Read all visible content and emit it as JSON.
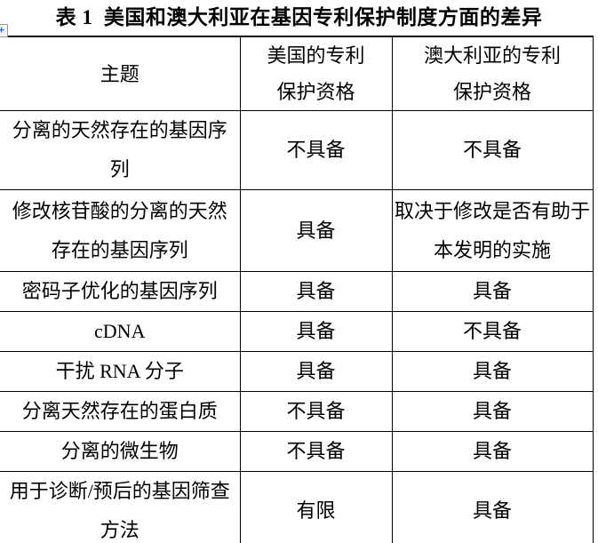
{
  "title": "表 1  美国和澳大利亚在基因专利保护制度方面的差异",
  "icons": {
    "table_move_handle": "+"
  },
  "table": {
    "headers": [
      "主题",
      "美国的专利\n保护资格",
      "澳大利亚的专利\n保护资格"
    ],
    "rows": [
      [
        "分离的天然存在的基因序\n列",
        "不具备",
        "不具备"
      ],
      [
        "修改核苷酸的分离的天然\n存在的基因序列",
        "具备",
        "取决于修改是否有助于\n本发明的实施"
      ],
      [
        "密码子优化的基因序列",
        "具备",
        "具备"
      ],
      [
        "cDNA",
        "具备",
        "不具备"
      ],
      [
        "干扰 RNA 分子",
        "具备",
        "具备"
      ],
      [
        "分离天然存在的蛋白质",
        "不具备",
        "具备"
      ],
      [
        "分离的微生物",
        "不具备",
        "具备"
      ],
      [
        "用于诊断/预后的基因筛查\n方法",
        "有限",
        "具备"
      ]
    ]
  }
}
